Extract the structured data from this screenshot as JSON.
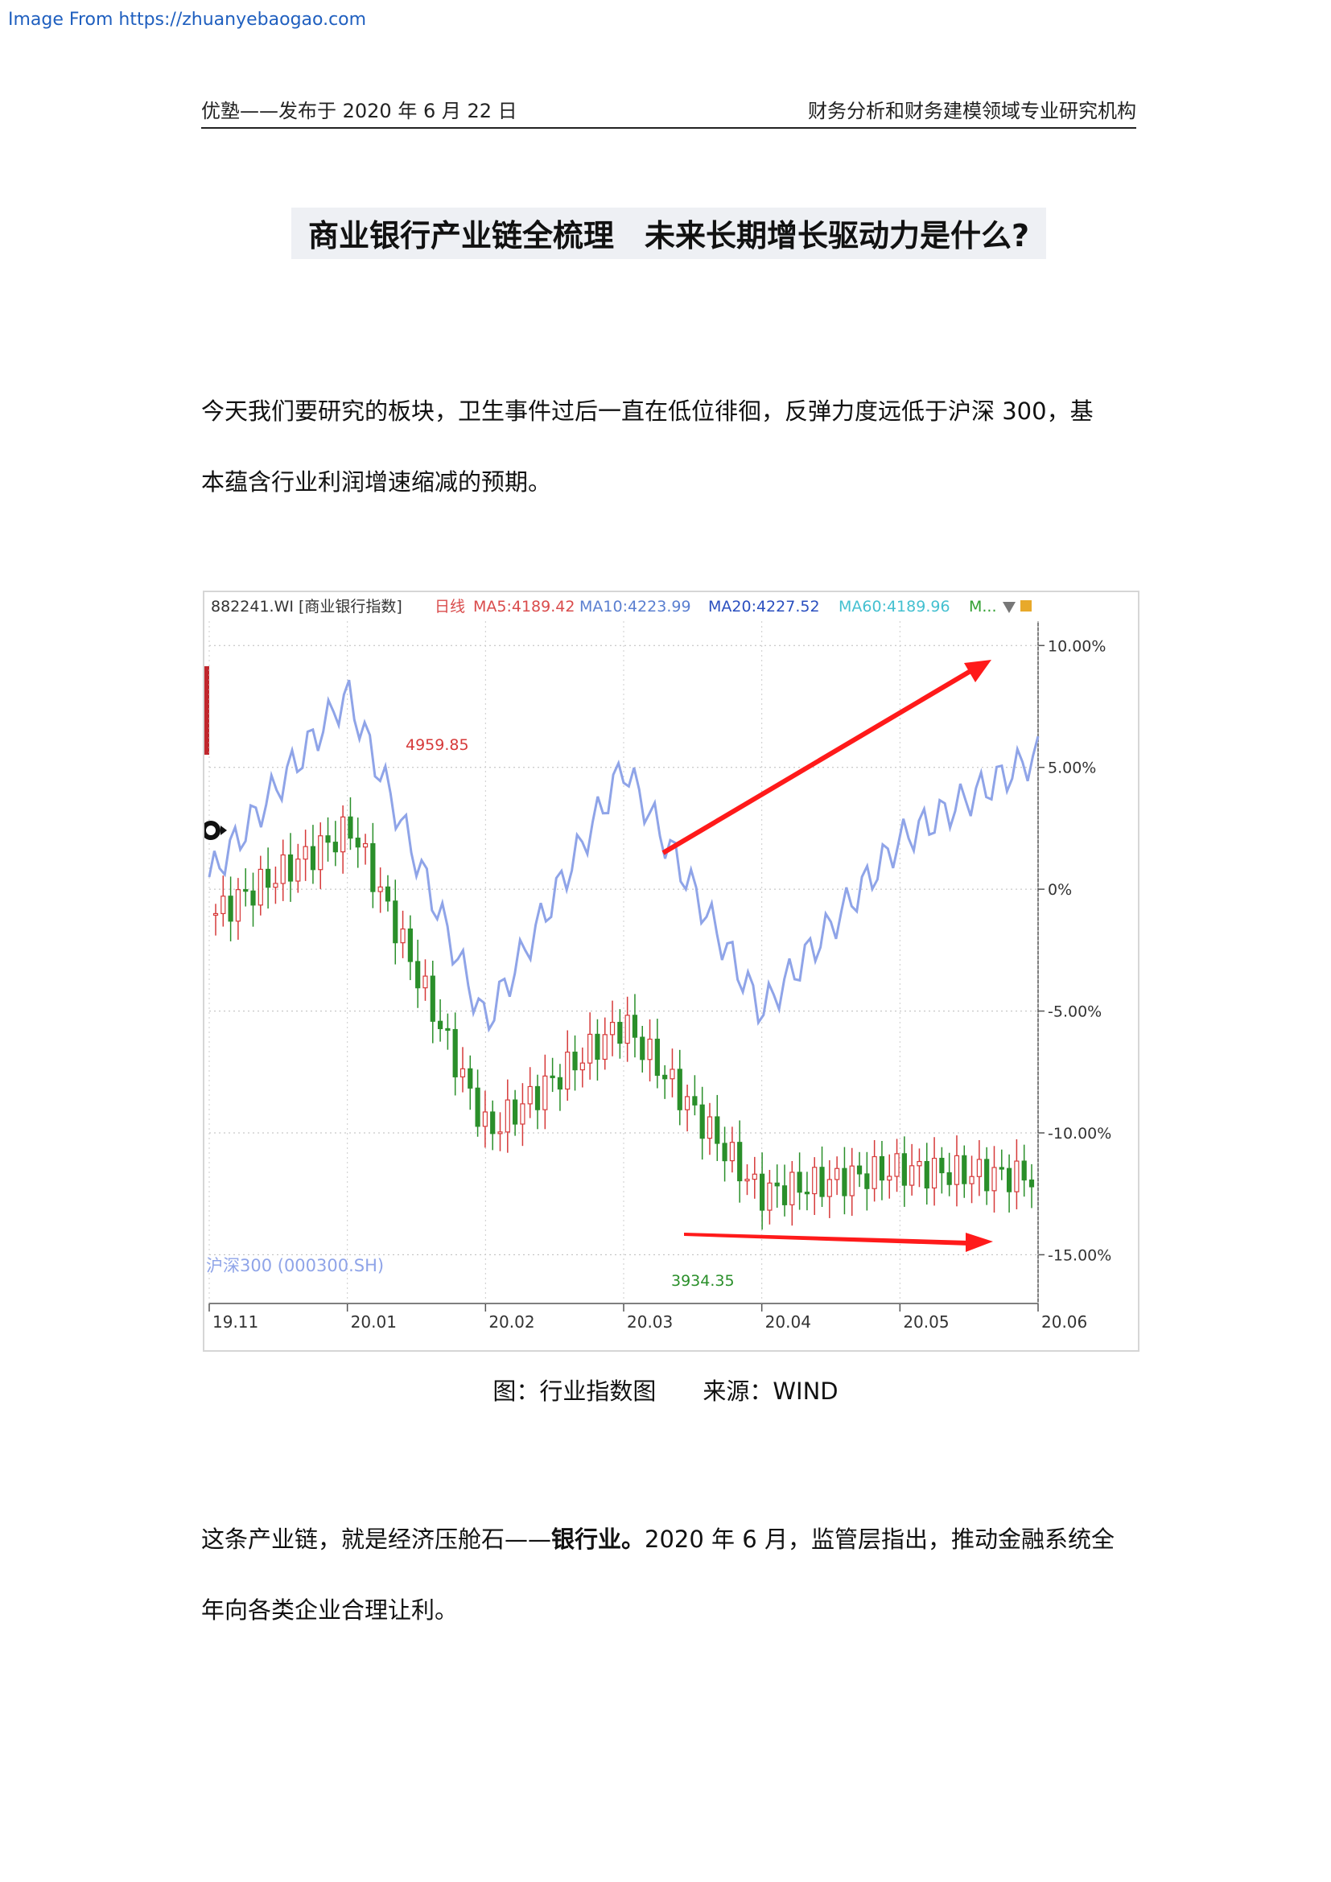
{
  "watermark": "Image From https://zhuanyebaogao.com",
  "header": {
    "left": "优塾——发布于 2020 年 6 月 22 日",
    "right": "财务分析和财务建模领域专业研究机构"
  },
  "title": "商业银行产业链全梳理　未来长期增长驱动力是什么?",
  "paragraphs": {
    "p1_line1": "今天我们要研究的板块，卫生事件过后一直在低位徘徊，反弹力度远低于沪深 300，基",
    "p1_line2": "本蕴含行业利润增速缩减的预期。",
    "p2_line1_a": "这条产业链，就是经济压舱石——",
    "p2_line1_bold": "银行业。",
    "p2_line1_b": "2020 年 6 月，监管层指出，推动金融系统全",
    "p2_line2": "年向各类企业合理让利。"
  },
  "caption": "图：行业指数图　　来源：WIND",
  "chart": {
    "legend": {
      "code": "882241.WI [商业银行指数]",
      "period": "日线",
      "ma5": "MA5:4189.42",
      "ma10": "MA10:4223.99",
      "ma20": "MA20:4227.52",
      "ma60": "MA60:4189.96",
      "more": "M..."
    },
    "colors": {
      "up": "#d63a3a",
      "down": "#2a8f2a",
      "index_series": "#8fa4e8",
      "arrow": "#ff1a1a",
      "ma5": "#d94b4b",
      "ma10": "#5a7fd0",
      "ma20": "#2a4fbf",
      "ma60": "#44c0d0"
    },
    "annotations": {
      "high": "4959.85",
      "low": "3934.35",
      "series_label": "沪深300 (000300.SH)"
    }
  },
  "chart_data": {
    "type": "line",
    "title": "",
    "xlabel": "",
    "ylabel": "",
    "x_tick_labels": [
      "19.11",
      "20.01",
      "20.02",
      "20.03",
      "20.04",
      "20.05",
      "20.06"
    ],
    "y_tick_labels": [
      "10.00%",
      "5.00%",
      "0%",
      "-5.00%",
      "-10.00%",
      "-15.00%"
    ],
    "ylim": [
      -17,
      11
    ],
    "grid": true,
    "series": [
      {
        "name": "882241.WI [商业银行指数]",
        "style": "candlestick",
        "x": [
          "19.11",
          "20.01",
          "20.02",
          "20.03",
          "20.04",
          "20.05",
          "20.06"
        ],
        "values": [
          -1.0,
          2.5,
          -10.0,
          -5.5,
          -12.5,
          -11.5,
          -11.8
        ]
      },
      {
        "name": "沪深300 (000300.SH)",
        "style": "line",
        "x": [
          "19.11",
          "20.01",
          "20.02",
          "20.03",
          "20.04",
          "20.05",
          "20.06"
        ],
        "values": [
          0.5,
          8.0,
          -5.5,
          5.0,
          -5.0,
          2.0,
          5.5
        ]
      }
    ]
  }
}
